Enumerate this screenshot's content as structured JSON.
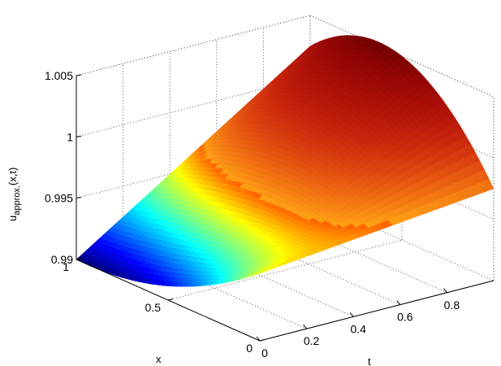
{
  "chart_data": {
    "type": "surface",
    "title": "",
    "xlabel": "t",
    "ylabel": "x",
    "zlabel": "u",
    "zlabel_sub": "approx.",
    "zlabel_args": "(x,t)",
    "xlim": [
      0,
      1
    ],
    "ylim": [
      0,
      1
    ],
    "zlim": [
      0.99,
      1.005
    ],
    "x_ticks": [
      0,
      0.2,
      0.4,
      0.6,
      0.8
    ],
    "x_tick_labels": [
      "0",
      "0.2",
      "0.4",
      "0.6",
      "0.8"
    ],
    "y_ticks": [
      0,
      0.5,
      1
    ],
    "y_tick_labels": [
      "0",
      "0.5",
      "1"
    ],
    "z_ticks": [
      0.99,
      0.995,
      1,
      1.005
    ],
    "z_tick_labels": [
      "0.99",
      "0.995",
      "1",
      "1.005"
    ],
    "grid": true,
    "box": true,
    "colormap": "jet",
    "corner_values": [
      {
        "x": 1,
        "t": 0,
        "u": 0.99
      },
      {
        "x": 0,
        "t": 0,
        "u": 0.9955
      },
      {
        "x": 1,
        "t": 1,
        "u": 1.0025
      },
      {
        "x": 0,
        "t": 1,
        "u": 0.9975
      }
    ],
    "peak": {
      "x": 0.4,
      "t": 1,
      "u": 1.0045
    }
  }
}
